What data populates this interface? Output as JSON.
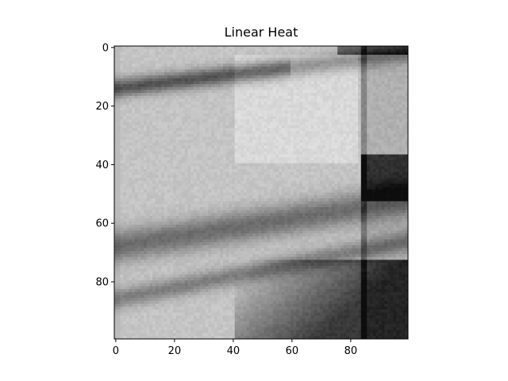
{
  "chart_data": {
    "type": "heatmap",
    "title": "Linear Heat",
    "xlabel": "",
    "ylabel": "",
    "colormap": "gray",
    "xlim": [
      -0.5,
      99.5
    ],
    "ylim": [
      99.5,
      -0.5
    ],
    "x_ticks": [
      0,
      20,
      40,
      60,
      80
    ],
    "y_ticks": [
      0,
      20,
      40,
      60,
      80
    ],
    "x_tick_labels": [
      "0",
      "20",
      "40",
      "60",
      "80"
    ],
    "y_tick_labels": [
      "0",
      "20",
      "40",
      "60",
      "80"
    ],
    "grid": false,
    "colors": {
      "spine": "#000000",
      "background": "#ffffff"
    }
  }
}
